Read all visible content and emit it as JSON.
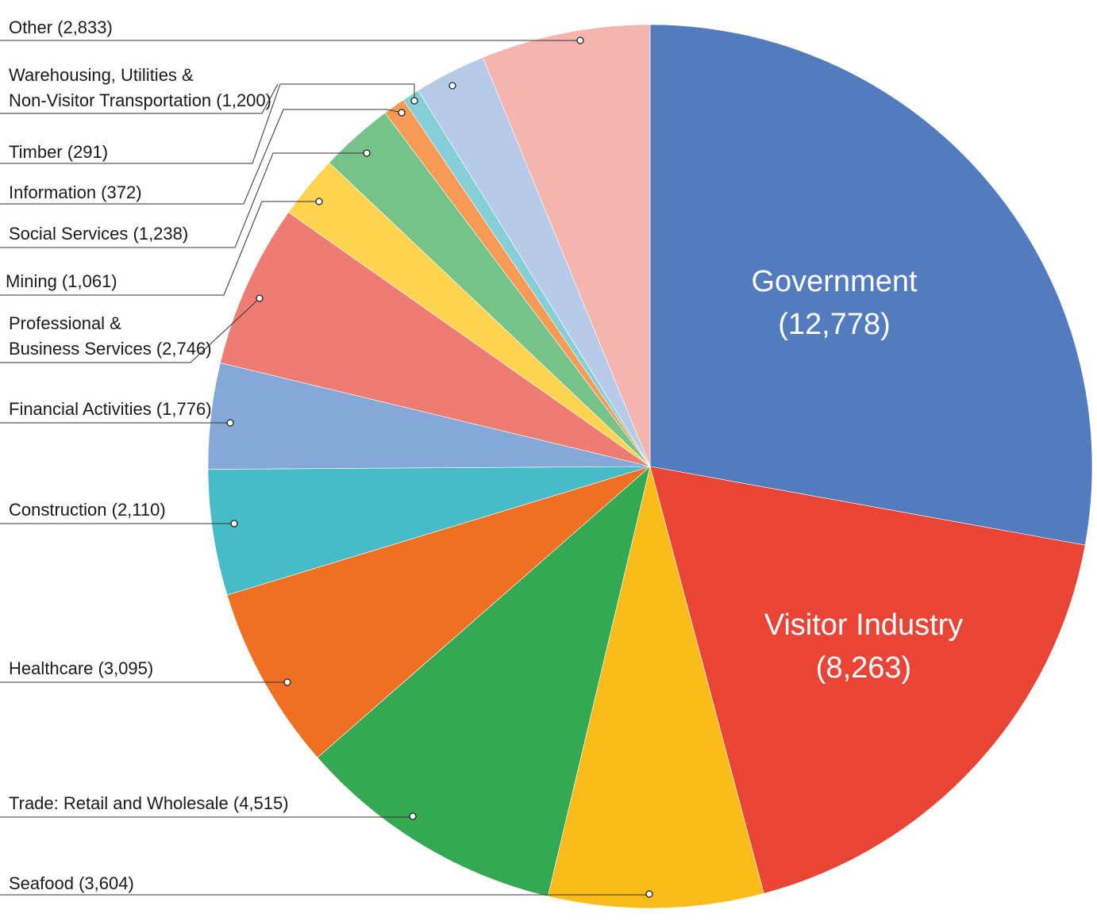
{
  "chart_data": {
    "type": "pie",
    "slices": [
      {
        "name": "Government",
        "value": 12778,
        "color": "#537CBF",
        "label_lines": [
          "Government",
          "(12,778)"
        ],
        "label_style": "inside"
      },
      {
        "name": "Visitor Industry",
        "value": 8263,
        "color": "#E84536",
        "label_lines": [
          "Visitor Industry",
          "(8,263)"
        ],
        "label_style": "inside"
      },
      {
        "name": "Seafood",
        "value": 3604,
        "color": "#F9BC1A",
        "label_lines": [
          "Seafood (3,604)"
        ],
        "label_style": "leader"
      },
      {
        "name": "Trade: Retail and Wholesale",
        "value": 4515,
        "color": "#34A853",
        "label_lines": [
          "Trade: Retail and Wholesale (4,515)"
        ],
        "label_style": "leader"
      },
      {
        "name": "Healthcare",
        "value": 3095,
        "color": "#F07023",
        "label_lines": [
          "Healthcare (3,095)"
        ],
        "label_style": "leader"
      },
      {
        "name": "Construction",
        "value": 2110,
        "color": "#47BBC6",
        "label_lines": [
          "Construction (2,110)"
        ],
        "label_style": "leader"
      },
      {
        "name": "Financial Activities",
        "value": 1776,
        "color": "#86A8D6",
        "label_lines": [
          "Financial Activities (1,776)"
        ],
        "label_style": "leader"
      },
      {
        "name": "Professional & Business Services",
        "value": 2746,
        "color": "#EF7C73",
        "label_lines": [
          "Professional &",
          "Business Services (2,746)"
        ],
        "label_style": "leader"
      },
      {
        "name": "Mining",
        "value": 1061,
        "color": "#FDD350",
        "label_lines": [
          "Mining (1,061)"
        ],
        "label_style": "leader"
      },
      {
        "name": "Social Services",
        "value": 1238,
        "color": "#76C38A",
        "label_lines": [
          "Social Services (1,238)"
        ],
        "label_style": "leader"
      },
      {
        "name": "Information",
        "value": 372,
        "color": "#F69A55",
        "label_lines": [
          "Information (372)"
        ],
        "label_style": "leader"
      },
      {
        "name": "Timber",
        "value": 291,
        "color": "#86CFD8",
        "label_lines": [
          "Timber (291)"
        ],
        "label_style": "leader"
      },
      {
        "name": "Warehousing, Utilities & Non-Visitor Transportation",
        "value": 1200,
        "color": "#B7CAE8",
        "label_lines": [
          "Warehousing, Utilities &",
          "Non-Visitor Transportation (1,200)"
        ],
        "label_style": "leader"
      },
      {
        "name": "Other",
        "value": 2833,
        "color": "#F4B5AF",
        "label_lines": [
          "Other (2,833)"
        ],
        "label_style": "leader"
      }
    ],
    "legend": "none",
    "title": ""
  }
}
